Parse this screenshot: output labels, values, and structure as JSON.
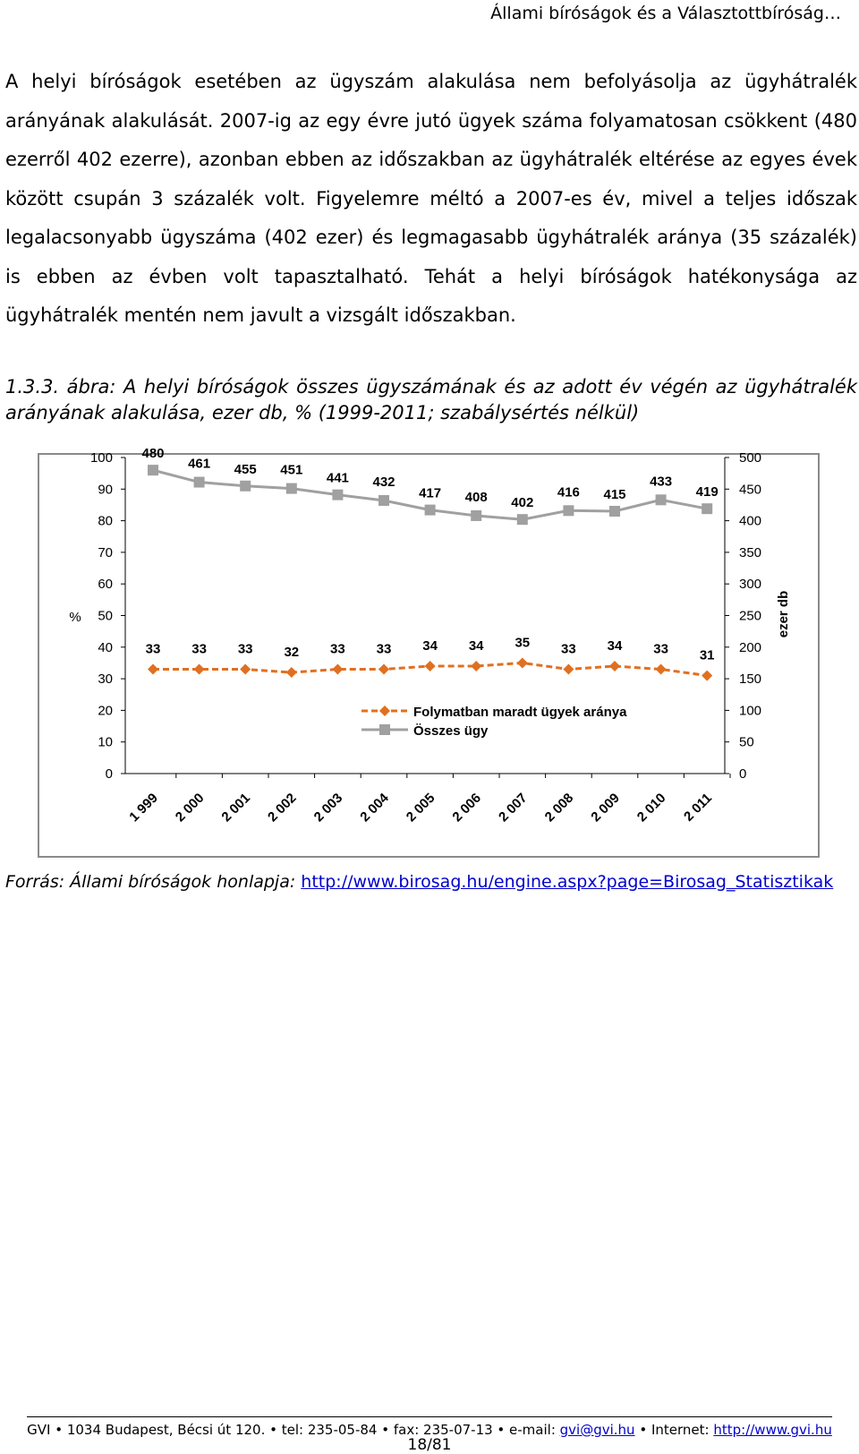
{
  "header": {
    "title": "Állami bíróságok és a Választottbíróság…"
  },
  "body": {
    "paragraph": "A helyi bíróságok esetében az ügyszám alakulása nem befolyásolja az ügyhátralék arányának alakulását. 2007-ig az egy évre jutó ügyek száma folyamatosan csökkent (480 ezerről 402 ezerre), azonban ebben az időszakban az ügyhátralék eltérése az egyes évek között csupán 3 százalék volt. Figyelemre méltó a 2007-es év, mivel a teljes időszak legalacsonyabb ügyszáma (402 ezer) és legmagasabb ügyhátralék aránya (35 százalék) is ebben az évben volt tapasztalható. Tehát a helyi bíróságok hatékonysága az ügyhátralék mentén nem javult a vizsgált időszakban.",
    "caption": "1.3.3. ábra: A helyi bíróságok összes ügyszámának és az adott év végén az ügyhátralék arányának alakulása, ezer db, % (1999-2011; szabálysértés nélkül)"
  },
  "chart_data": {
    "type": "line",
    "x": [
      "1 999",
      "2 000",
      "2 001",
      "2 002",
      "2 003",
      "2 004",
      "2 005",
      "2 006",
      "2 007",
      "2 008",
      "2 009",
      "2 010",
      "2 011"
    ],
    "ylabel_left": "%",
    "ylabel_right": "ezer db",
    "ylim_left": [
      0,
      100
    ],
    "ylim_right": [
      0,
      500
    ],
    "yticks_left": [
      "0",
      "10",
      "20",
      "30",
      "40",
      "50",
      "60",
      "70",
      "80",
      "90",
      "100"
    ],
    "yticks_right": [
      "0",
      "50",
      "100",
      "150",
      "200",
      "250",
      "300",
      "350",
      "400",
      "450",
      "500"
    ],
    "legend_position": "center-bottom",
    "series": [
      {
        "name": "Folymatban maradt ügyek aránya",
        "axis": "left",
        "color": "#e07020",
        "marker": "diamond",
        "dash": true,
        "values": [
          33,
          33,
          33,
          32,
          33,
          33,
          34,
          34,
          35,
          33,
          34,
          33,
          31
        ]
      },
      {
        "name": "Összes ügy",
        "axis": "right",
        "color": "#a0a0a0",
        "marker": "square",
        "dash": false,
        "values": [
          480,
          461,
          455,
          451,
          441,
          432,
          417,
          408,
          402,
          416,
          415,
          433,
          419
        ]
      }
    ]
  },
  "source": {
    "label": "Forrás: Állami bíróságok honlapja: ",
    "link": "http://www.birosag.hu/engine.aspx?page=Birosag_Statisztikak"
  },
  "footer": {
    "text": "GVI • 1034 Budapest, Bécsi út 120. • tel: 235-05-84 • fax: 235-07-13 • e-mail: ",
    "email": "gvi@gvi.hu",
    "internet_label": " • Internet: ",
    "internet": "http://www.gvi.hu",
    "page": "18/81"
  }
}
